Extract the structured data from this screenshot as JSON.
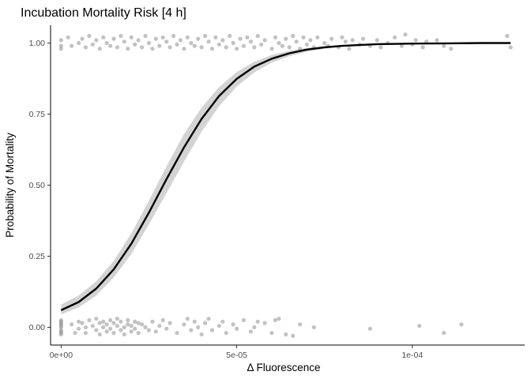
{
  "chart_data": {
    "type": "scatter",
    "title": "Incubation Mortality Risk [4 h]",
    "xlabel": "Δ Fluorescence",
    "ylabel": "Probability of Mortality",
    "xlim": [
      -3e-06,
      0.000132
    ],
    "ylim": [
      -0.0625,
      1.0625
    ],
    "x_ticks": [
      {
        "value": 0,
        "label": "0e+00"
      },
      {
        "value": 5e-05,
        "label": "5e-05"
      },
      {
        "value": 0.0001,
        "label": "1e-04"
      }
    ],
    "y_ticks": [
      {
        "value": 0,
        "label": "0.00"
      },
      {
        "value": 0.25,
        "label": "0.25"
      },
      {
        "value": 0.5,
        "label": "0.50"
      },
      {
        "value": 0.75,
        "label": "0.75"
      },
      {
        "value": 1,
        "label": "1.00"
      }
    ],
    "grid": false,
    "legend": "none",
    "colors": {
      "points": "#999999",
      "fit_line": "#000000",
      "confidence_band": "#d3d3d3"
    },
    "logistic_fit": {
      "x": [
        0,
        5e-06,
        1e-05,
        1.5e-05,
        2e-05,
        2.5e-05,
        3e-05,
        3.5e-05,
        4e-05,
        4.5e-05,
        5e-05,
        5.5e-05,
        6e-05,
        6.5e-05,
        7e-05,
        7.5e-05,
        8e-05,
        9e-05,
        0.0001,
        0.00011,
        0.00012,
        0.000128
      ],
      "fit": [
        0.06,
        0.089,
        0.136,
        0.204,
        0.294,
        0.403,
        0.521,
        0.633,
        0.733,
        0.814,
        0.874,
        0.917,
        0.945,
        0.964,
        0.977,
        0.985,
        0.99,
        0.996,
        0.998,
        0.999,
        1.0,
        1.0
      ],
      "lower": [
        0.045,
        0.07,
        0.112,
        0.175,
        0.258,
        0.362,
        0.472,
        0.583,
        0.688,
        0.778,
        0.847,
        0.897,
        0.931,
        0.954,
        0.97,
        0.98,
        0.987,
        0.994,
        0.997,
        0.999,
        0.999,
        1.0
      ],
      "upper": [
        0.08,
        0.112,
        0.162,
        0.234,
        0.33,
        0.445,
        0.566,
        0.68,
        0.773,
        0.845,
        0.898,
        0.934,
        0.958,
        0.973,
        0.983,
        0.989,
        0.993,
        0.997,
        0.999,
        1.0,
        1.0,
        1.0
      ]
    },
    "series": [
      {
        "outcome": 0,
        "points": [
          [
            0,
            0.01
          ],
          [
            0,
            -0.01
          ],
          [
            0,
            0.02
          ],
          [
            0,
            -0.02
          ],
          [
            0,
            0.0
          ],
          [
            0,
            0.015
          ],
          [
            0,
            -0.015
          ],
          [
            0,
            0.025
          ],
          [
            0,
            -0.025
          ],
          [
            0,
            0.005
          ],
          [
            3e-06,
            0.01
          ],
          [
            4e-06,
            -0.02
          ],
          [
            5e-06,
            0.02
          ],
          [
            5e-06,
            -0.005
          ],
          [
            6e-06,
            0.015
          ],
          [
            7e-06,
            0.0
          ],
          [
            7e-06,
            -0.02
          ],
          [
            8e-06,
            0.025
          ],
          [
            9e-06,
            0.005
          ],
          [
            1e-05,
            -0.01
          ],
          [
            1e-05,
            0.03
          ],
          [
            1.1e-05,
            0.015
          ],
          [
            1.1e-05,
            -0.025
          ],
          [
            1.2e-05,
            0.0
          ],
          [
            1.2e-05,
            0.02
          ],
          [
            1.3e-05,
            -0.015
          ],
          [
            1.3e-05,
            0.01
          ],
          [
            1.4e-05,
            0.025
          ],
          [
            1.4e-05,
            -0.005
          ],
          [
            1.5e-05,
            0.015
          ],
          [
            1.5e-05,
            -0.02
          ],
          [
            1.6e-05,
            0.005
          ],
          [
            1.6e-05,
            0.03
          ],
          [
            1.7e-05,
            -0.01
          ],
          [
            1.7e-05,
            0.02
          ],
          [
            1.8e-05,
            0.0
          ],
          [
            1.8e-05,
            -0.025
          ],
          [
            1.9e-05,
            0.01
          ],
          [
            1.9e-05,
            0.025
          ],
          [
            2e-05,
            -0.015
          ],
          [
            2e-05,
            0.005
          ],
          [
            2.1e-05,
            0.02
          ],
          [
            2.1e-05,
            -0.005
          ],
          [
            2.2e-05,
            0.015
          ],
          [
            2.2e-05,
            -0.02
          ],
          [
            2.3e-05,
            0.01
          ],
          [
            2.4e-05,
            0.0
          ],
          [
            2.5e-05,
            -0.01
          ],
          [
            2.6e-05,
            0.02
          ],
          [
            2.7e-05,
            -0.015
          ],
          [
            2.8e-05,
            0.005
          ],
          [
            2.9e-05,
            0.025
          ],
          [
            3e-05,
            -0.005
          ],
          [
            3.1e-05,
            0.015
          ],
          [
            3.3e-05,
            -0.02
          ],
          [
            3.5e-05,
            0.01
          ],
          [
            3.6e-05,
            0.03
          ],
          [
            3.7e-05,
            -0.01
          ],
          [
            3.8e-05,
            0.02
          ],
          [
            3.9e-05,
            0.0
          ],
          [
            4e-05,
            -0.025
          ],
          [
            4.1e-05,
            0.015
          ],
          [
            4.2e-05,
            0.03
          ],
          [
            4.3e-05,
            -0.01
          ],
          [
            4.5e-05,
            0.005
          ],
          [
            4.6e-05,
            0.02
          ],
          [
            4.7e-05,
            -0.02
          ],
          [
            4.9e-05,
            0.01
          ],
          [
            5e-05,
            -0.005
          ],
          [
            5.2e-05,
            0.025
          ],
          [
            5.4e-05,
            -0.015
          ],
          [
            5.5e-05,
            0.0
          ],
          [
            5.6e-05,
            0.02
          ],
          [
            5.8e-05,
            0.015
          ],
          [
            6e-05,
            -0.02
          ],
          [
            6.1e-05,
            0.025
          ],
          [
            6.2e-05,
            0.03
          ],
          [
            6.4e-05,
            -0.025
          ],
          [
            6.6e-05,
            -0.03
          ],
          [
            6.8e-05,
            0.01
          ],
          [
            7.2e-05,
            0.0
          ],
          [
            8.8e-05,
            -0.005
          ],
          [
            0.000102,
            0.005
          ],
          [
            0.000109,
            -0.02
          ],
          [
            0.000114,
            0.01
          ]
        ]
      },
      {
        "outcome": 1,
        "points": [
          [
            0,
            1.01
          ],
          [
            0,
            0.99
          ],
          [
            0,
            0.98
          ],
          [
            2e-06,
            1.02
          ],
          [
            3e-06,
            0.99
          ],
          [
            5e-06,
            1.0
          ],
          [
            6e-06,
            1.015
          ],
          [
            7e-06,
            0.985
          ],
          [
            8e-06,
            1.025
          ],
          [
            9e-06,
            0.995
          ],
          [
            1e-05,
            1.01
          ],
          [
            1.1e-05,
            0.98
          ],
          [
            1.2e-05,
            1.02
          ],
          [
            1.3e-05,
            1.0
          ],
          [
            1.4e-05,
            0.99
          ],
          [
            1.5e-05,
            1.015
          ],
          [
            1.6e-05,
            0.985
          ],
          [
            1.7e-05,
            1.025
          ],
          [
            1.8e-05,
            1.005
          ],
          [
            1.9e-05,
            0.98
          ],
          [
            2e-05,
            1.02
          ],
          [
            2.1e-05,
            0.995
          ],
          [
            2.2e-05,
            1.01
          ],
          [
            2.3e-05,
            0.985
          ],
          [
            2.4e-05,
            1.025
          ],
          [
            2.5e-05,
            1.0
          ],
          [
            2.6e-05,
            0.98
          ],
          [
            2.7e-05,
            1.015
          ],
          [
            2.8e-05,
            0.99
          ],
          [
            2.9e-05,
            1.02
          ],
          [
            3e-05,
            1.005
          ],
          [
            3.1e-05,
            0.985
          ],
          [
            3.2e-05,
            1.025
          ],
          [
            3.3e-05,
            0.995
          ],
          [
            3.4e-05,
            1.01
          ],
          [
            3.5e-05,
            0.98
          ],
          [
            3.6e-05,
            1.02
          ],
          [
            3.7e-05,
            1.0
          ],
          [
            3.8e-05,
            0.99
          ],
          [
            3.9e-05,
            1.015
          ],
          [
            4e-05,
            0.985
          ],
          [
            4.1e-05,
            1.025
          ],
          [
            4.2e-05,
            1.005
          ],
          [
            4.3e-05,
            0.98
          ],
          [
            4.4e-05,
            1.02
          ],
          [
            4.5e-05,
            0.995
          ],
          [
            4.6e-05,
            1.01
          ],
          [
            4.7e-05,
            0.985
          ],
          [
            4.8e-05,
            1.025
          ],
          [
            4.9e-05,
            1.0
          ],
          [
            5e-05,
            0.98
          ],
          [
            5.1e-05,
            1.015
          ],
          [
            5.2e-05,
            0.99
          ],
          [
            5.3e-05,
            1.02
          ],
          [
            5.4e-05,
            1.005
          ],
          [
            5.5e-05,
            0.985
          ],
          [
            5.6e-05,
            1.025
          ],
          [
            5.7e-05,
            0.995
          ],
          [
            5.8e-05,
            1.01
          ],
          [
            6e-05,
            0.98
          ],
          [
            6.1e-05,
            1.02
          ],
          [
            6.2e-05,
            1.0
          ],
          [
            6.3e-05,
            0.99
          ],
          [
            6.4e-05,
            1.015
          ],
          [
            6.5e-05,
            0.985
          ],
          [
            6.6e-05,
            1.025
          ],
          [
            6.7e-05,
            1.005
          ],
          [
            6.8e-05,
            0.98
          ],
          [
            6.9e-05,
            1.02
          ],
          [
            7e-05,
            0.995
          ],
          [
            7.1e-05,
            1.01
          ],
          [
            7.2e-05,
            0.985
          ],
          [
            7.3e-05,
            1.02
          ],
          [
            7.5e-05,
            1.0
          ],
          [
            7.6e-05,
            0.99
          ],
          [
            7.7e-05,
            1.015
          ],
          [
            7.9e-05,
            0.985
          ],
          [
            8e-05,
            1.02
          ],
          [
            8.1e-05,
            1.005
          ],
          [
            8.2e-05,
            0.98
          ],
          [
            8.3e-05,
            1.01
          ],
          [
            8.5e-05,
            0.995
          ],
          [
            8.6e-05,
            1.015
          ],
          [
            8.8e-05,
            0.99
          ],
          [
            9e-05,
            1.01
          ],
          [
            9.1e-05,
            0.985
          ],
          [
            9.3e-05,
            1.0
          ],
          [
            9.5e-05,
            1.02
          ],
          [
            9.7e-05,
            0.99
          ],
          [
            9.8e-05,
            1.03
          ],
          [
            0.0001,
            0.995
          ],
          [
            0.000101,
            1.01
          ],
          [
            0.000103,
            0.985
          ],
          [
            0.000104,
            1.005
          ],
          [
            0.000107,
            1.01
          ],
          [
            0.000109,
            0.99
          ],
          [
            0.000111,
            0.98
          ],
          [
            0.000127,
            1.025
          ],
          [
            0.000128,
            0.985
          ]
        ]
      }
    ]
  }
}
